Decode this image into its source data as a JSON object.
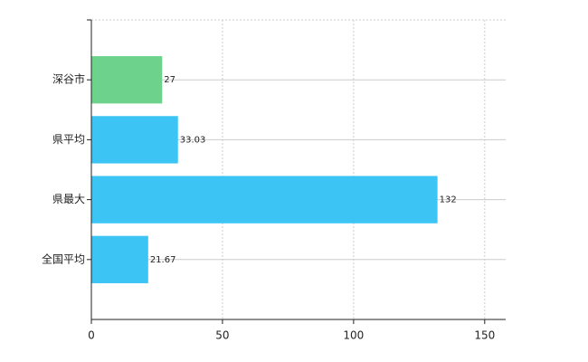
{
  "chart_data": {
    "type": "bar",
    "orientation": "horizontal",
    "categories": [
      "深谷市",
      "県平均",
      "県最大",
      "全国平均"
    ],
    "values": [
      27,
      33.03,
      132,
      21.67
    ],
    "colors": [
      "#6dd38c",
      "#3cc4f5",
      "#3cc4f5",
      "#3cc4f5"
    ],
    "xlim": [
      0,
      158
    ],
    "xticks": [
      0,
      50,
      100,
      150
    ],
    "grid": true
  }
}
